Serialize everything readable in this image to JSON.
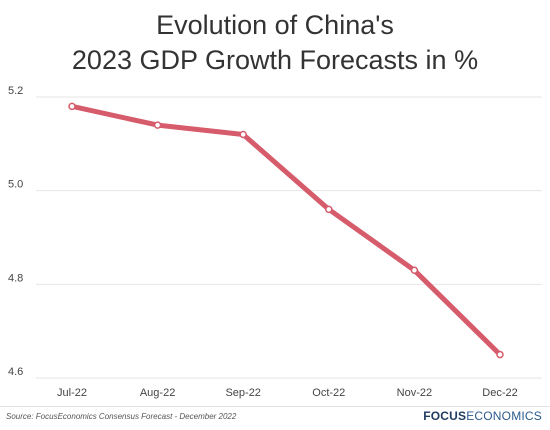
{
  "title_line1": "Evolution of China's",
  "title_line2": "2023 GDP Growth Forecasts in %",
  "source": "Source:  FocusEconomics Consensus Forecast - December 2022",
  "logo": {
    "part1": "FOCUS",
    "part2": "ECONOMICS"
  },
  "colors": {
    "line": "#d65b6b",
    "grid": "#e6e6e6",
    "axis_text": "#444444"
  },
  "chart_data": {
    "type": "line",
    "categories": [
      "Jul-22",
      "Aug-22",
      "Sep-22",
      "Oct-22",
      "Nov-22",
      "Dec-22"
    ],
    "series": [
      {
        "values": [
          5.18,
          5.14,
          5.12,
          4.96,
          4.83,
          4.65
        ]
      }
    ],
    "ylim": [
      4.6,
      5.2
    ],
    "yticks": [
      4.6,
      4.8,
      5.0,
      5.2
    ],
    "ytick_labels": [
      "4.6",
      "4.8",
      "5.0",
      "5.2"
    ],
    "grid": true,
    "legend": "none"
  }
}
